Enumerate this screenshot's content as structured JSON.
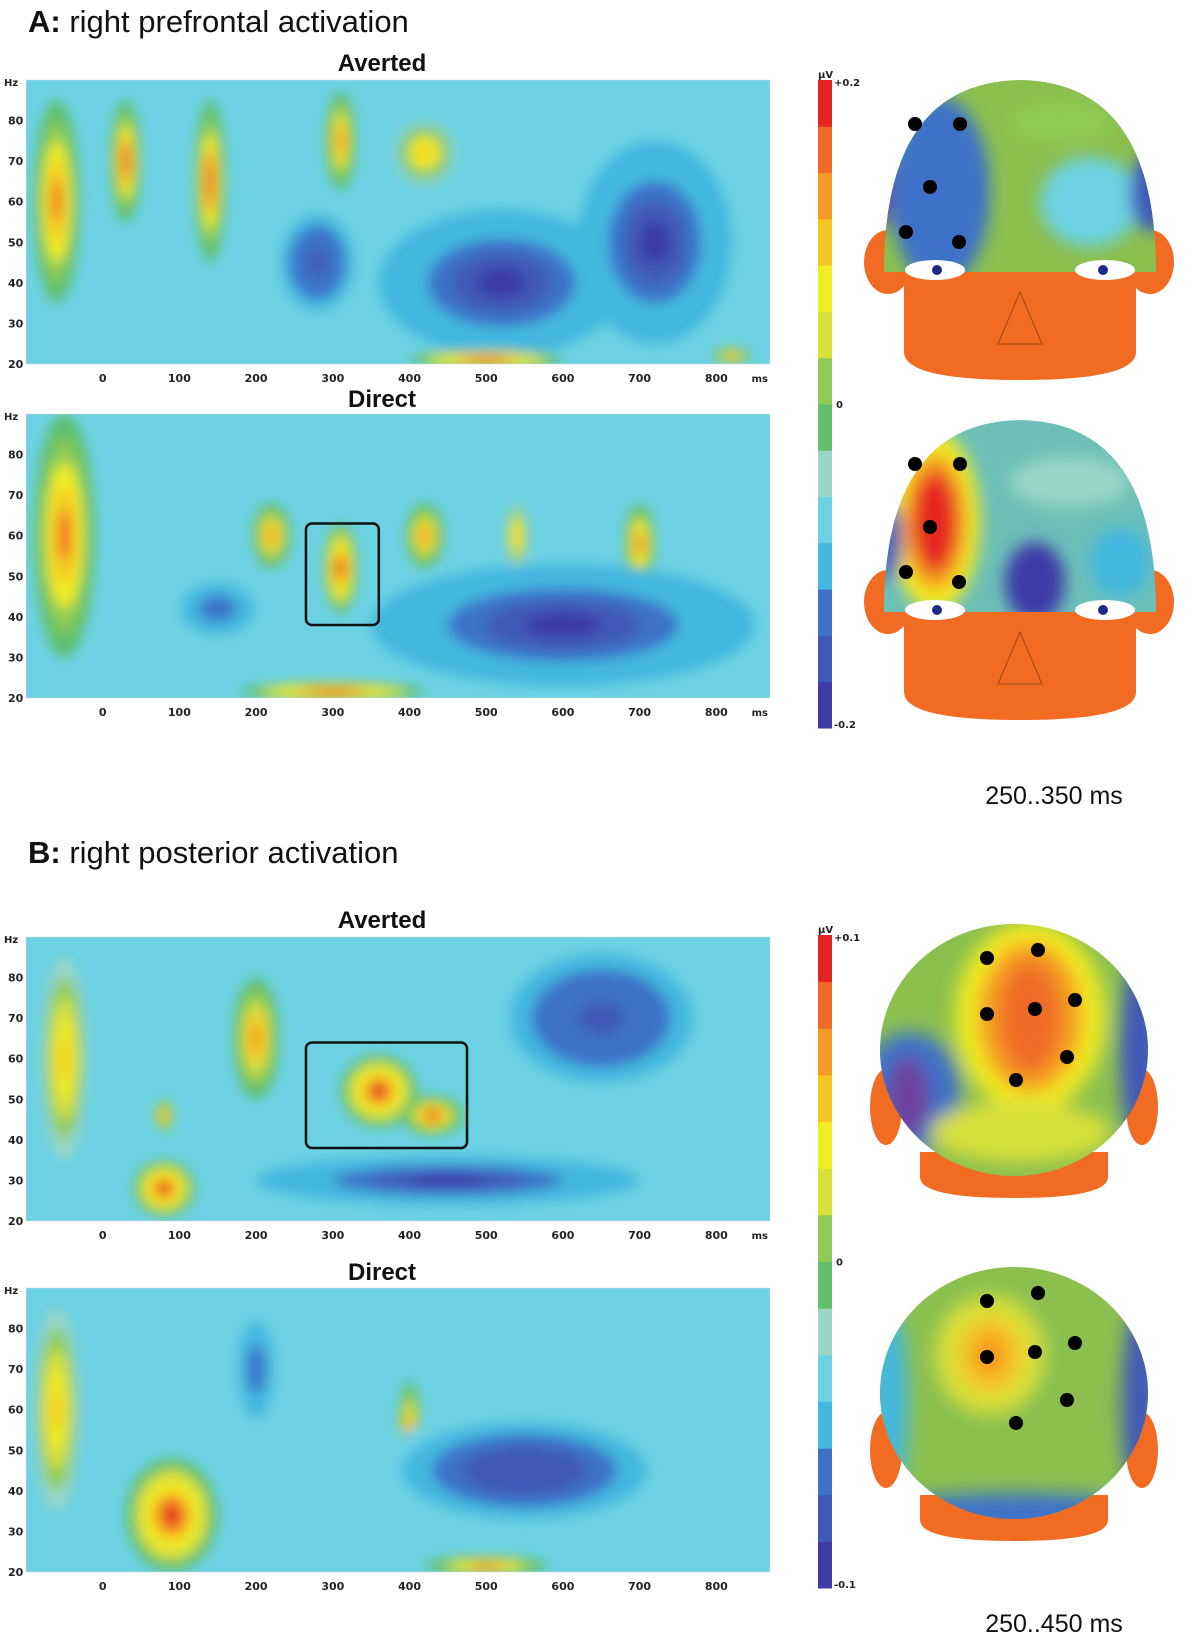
{
  "figure": {
    "section_a": {
      "letter": "A:",
      "title": "right prefrontal activation"
    },
    "section_b": {
      "letter": "B:",
      "title": "right posterior activation"
    }
  },
  "colormap": [
    "#3e3aa8",
    "#3f59b8",
    "#3d72c8",
    "#43b7e0",
    "#6cd2e3",
    "#9ad6c6",
    "#5fbf6c",
    "#8ecb56",
    "#d8e03a",
    "#f2ec22",
    "#f7c623",
    "#f59a24",
    "#ef6a26",
    "#e52521"
  ],
  "heads": {
    "a_averted": {
      "skin": "#f26b22",
      "field": "#8bc04f"
    },
    "a_direct": {
      "skin": "#f26b22",
      "field": "#6cc0b8"
    },
    "b_averted": {
      "skin": "#f26b22",
      "field": "#8bc04f"
    },
    "b_direct": {
      "skin": "#f26b22",
      "field": "#8bc04f"
    }
  },
  "chart_data": [
    {
      "type": "heatmap",
      "panel": "A",
      "title": "Averted",
      "xlabel": "ms",
      "ylabel": "Hz",
      "xticks": [
        0,
        100,
        200,
        300,
        400,
        500,
        600,
        700,
        800
      ],
      "yticks": [
        20,
        30,
        40,
        50,
        60,
        70,
        80
      ],
      "xlim": [
        -100,
        870
      ],
      "ylim": [
        20,
        90
      ],
      "colorbar": {
        "unit": "µV",
        "max": "+0.2",
        "mid": "0",
        "min": "-0.2"
      },
      "blobs": [
        {
          "x": -60,
          "y": 60,
          "rx": 30,
          "ry": 25,
          "v": 0.8
        },
        {
          "x": 30,
          "y": 70,
          "rx": 20,
          "ry": 15,
          "v": 0.9
        },
        {
          "x": 140,
          "y": 65,
          "rx": 20,
          "ry": 20,
          "v": 0.9
        },
        {
          "x": 310,
          "y": 75,
          "rx": 20,
          "ry": 12,
          "v": 0.7
        },
        {
          "x": 420,
          "y": 72,
          "rx": 40,
          "ry": 8,
          "v": 0.5
        },
        {
          "x": 520,
          "y": 40,
          "rx": 160,
          "ry": 18,
          "v": -1.0
        },
        {
          "x": 720,
          "y": 50,
          "rx": 100,
          "ry": 25,
          "v": -1.0
        },
        {
          "x": 280,
          "y": 45,
          "rx": 60,
          "ry": 15,
          "v": -0.8
        },
        {
          "x": 500,
          "y": 21,
          "rx": 100,
          "ry": 2.5,
          "v": 1.0
        },
        {
          "x": 820,
          "y": 22,
          "rx": 25,
          "ry": 2,
          "v": 0.7
        }
      ]
    },
    {
      "type": "heatmap",
      "panel": "A",
      "title": "Direct",
      "xlabel": "ms",
      "ylabel": "Hz",
      "xticks": [
        0,
        100,
        200,
        300,
        400,
        500,
        600,
        700,
        800
      ],
      "yticks": [
        20,
        30,
        40,
        50,
        60,
        70,
        80
      ],
      "xlim": [
        -100,
        870
      ],
      "ylim": [
        20,
        90
      ],
      "highlight": {
        "x0": 265,
        "x1": 360,
        "y0": 38,
        "y1": 63
      },
      "blobs": [
        {
          "x": -50,
          "y": 60,
          "rx": 40,
          "ry": 30,
          "v": 0.8
        },
        {
          "x": 310,
          "y": 52,
          "rx": 22,
          "ry": 11,
          "v": 1.0
        },
        {
          "x": 220,
          "y": 60,
          "rx": 25,
          "ry": 8,
          "v": 0.7
        },
        {
          "x": 420,
          "y": 60,
          "rx": 25,
          "ry": 8,
          "v": 0.7
        },
        {
          "x": 540,
          "y": 60,
          "rx": 15,
          "ry": 8,
          "v": 0.6
        },
        {
          "x": 700,
          "y": 58,
          "rx": 20,
          "ry": 10,
          "v": 0.8
        },
        {
          "x": 600,
          "y": 38,
          "rx": 250,
          "ry": 15,
          "v": -1.0
        },
        {
          "x": 150,
          "y": 42,
          "rx": 60,
          "ry": 8,
          "v": -0.7
        },
        {
          "x": 300,
          "y": 21.5,
          "rx": 120,
          "ry": 2.5,
          "v": 1.0
        }
      ]
    },
    {
      "type": "heatmap",
      "panel": "B",
      "title": "Averted",
      "xlabel": "ms",
      "ylabel": "Hz",
      "xticks": [
        0,
        100,
        200,
        300,
        400,
        500,
        600,
        700,
        800
      ],
      "yticks": [
        20,
        30,
        40,
        50,
        60,
        70,
        80
      ],
      "xlim": [
        -100,
        870
      ],
      "ylim": [
        20,
        90
      ],
      "colorbar": {
        "unit": "µV",
        "max": "+0.1",
        "mid": "0",
        "min": "-0.1"
      },
      "highlight": {
        "x0": 265,
        "x1": 475,
        "y0": 38,
        "y1": 64
      },
      "blobs": [
        {
          "x": -50,
          "y": 60,
          "rx": 30,
          "ry": 25,
          "v": 0.6
        },
        {
          "x": 360,
          "y": 52,
          "rx": 50,
          "ry": 9,
          "v": 1.0
        },
        {
          "x": 430,
          "y": 46,
          "rx": 40,
          "ry": 5,
          "v": 0.9
        },
        {
          "x": 80,
          "y": 28,
          "rx": 40,
          "ry": 7,
          "v": 1.0
        },
        {
          "x": 80,
          "y": 46,
          "rx": 12,
          "ry": 4,
          "v": 0.8
        },
        {
          "x": 450,
          "y": 30,
          "rx": 250,
          "ry": 6,
          "v": -1.0
        },
        {
          "x": 650,
          "y": 70,
          "rx": 150,
          "ry": 20,
          "v": -0.8
        },
        {
          "x": 200,
          "y": 65,
          "rx": 30,
          "ry": 15,
          "v": 0.7
        }
      ]
    },
    {
      "type": "heatmap",
      "panel": "B",
      "title": "Direct",
      "xlabel": "",
      "ylabel": "Hz",
      "xticks": [
        0,
        100,
        200,
        300,
        400,
        500,
        600,
        700,
        800
      ],
      "yticks": [
        20,
        30,
        40,
        50,
        60,
        70,
        80
      ],
      "xlim": [
        -100,
        870
      ],
      "ylim": [
        20,
        90
      ],
      "blobs": [
        {
          "x": 90,
          "y": 34,
          "rx": 60,
          "ry": 14,
          "v": 1.0
        },
        {
          "x": -60,
          "y": 60,
          "rx": 30,
          "ry": 25,
          "v": 0.6
        },
        {
          "x": 400,
          "y": 55,
          "rx": 15,
          "ry": 12,
          "v": 0.7
        },
        {
          "x": 500,
          "y": 21.5,
          "rx": 80,
          "ry": 2.5,
          "v": 0.8
        },
        {
          "x": 550,
          "y": 45,
          "rx": 200,
          "ry": 15,
          "v": -0.9
        },
        {
          "x": 200,
          "y": 70,
          "rx": 30,
          "ry": 15,
          "v": -0.7
        }
      ]
    }
  ],
  "topo_a": {
    "range": "250..350 ms"
  },
  "topo_b": {
    "range": "250..450 ms"
  }
}
